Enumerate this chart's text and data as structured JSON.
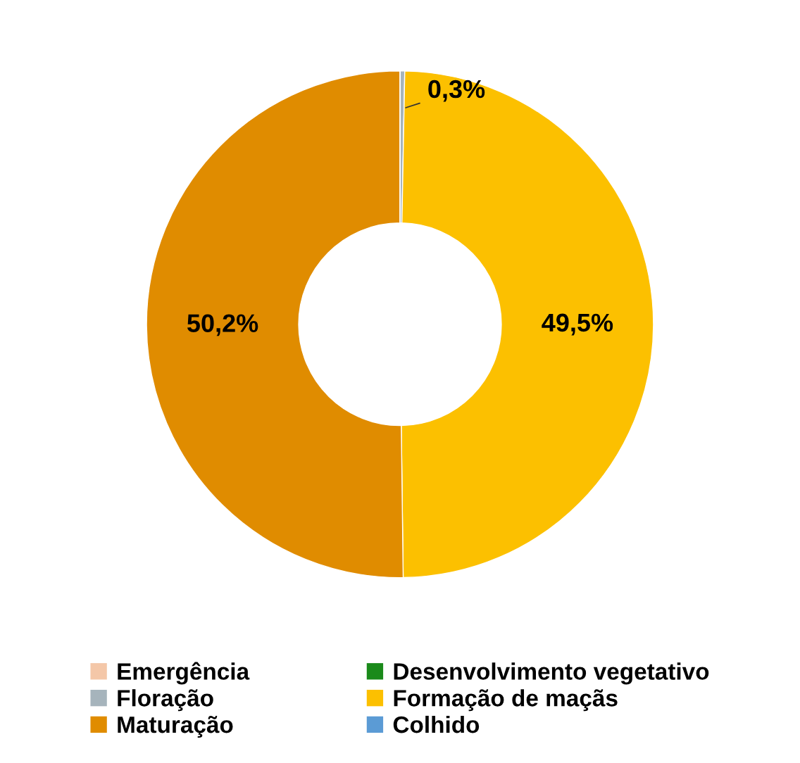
{
  "chart_data": {
    "type": "donut",
    "categories": [
      "Emergência",
      "Desenvolvimento vegetativo",
      "Floração",
      "Formação de maçãs",
      "Maturação",
      "Colhido"
    ],
    "values": [
      0,
      0,
      0.3,
      49.5,
      50.2,
      0
    ],
    "value_labels": [
      null,
      null,
      "0,3%",
      "49,5%",
      "50,2%",
      null
    ],
    "colors": [
      "#f4c7a8",
      "#1a8a1a",
      "#a6b4bc",
      "#fcc000",
      "#e08c00",
      "#5b9bd5"
    ],
    "legend": "bottom"
  }
}
